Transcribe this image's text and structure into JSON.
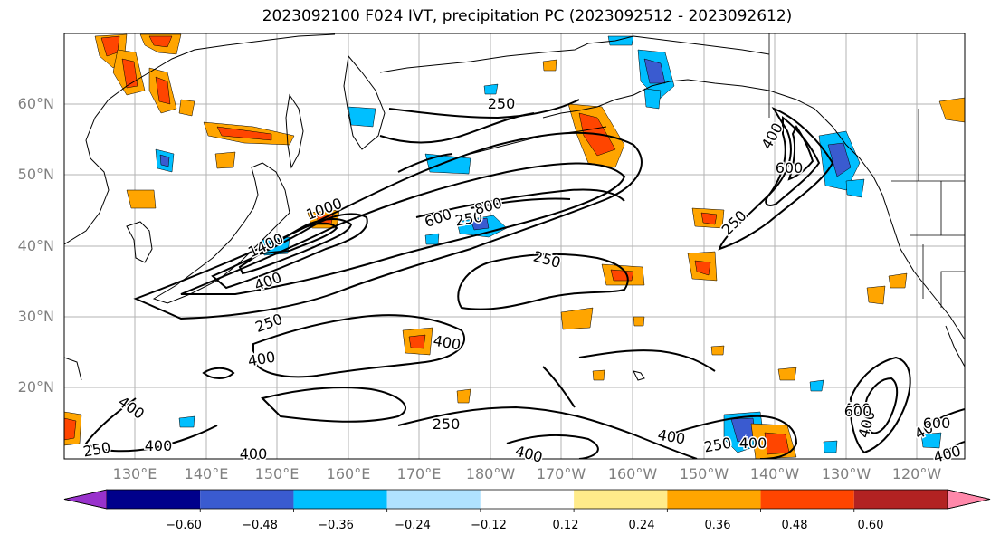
{
  "title": "2023092100 F024 IVT, precipitation PC (2023092512 - 2023092612)",
  "lat_labels": [
    "20°N",
    "30°N",
    "40°N",
    "50°N",
    "60°N"
  ],
  "lon_labels": [
    "130°E",
    "140°E",
    "150°E",
    "160°E",
    "170°E",
    "180°W",
    "170°W",
    "160°W",
    "150°W",
    "140°W",
    "130°W",
    "120°W"
  ],
  "colorbar": {
    "colors": [
      "#9932cc",
      "#00008b",
      "#3a5bd0",
      "#00bfff",
      "#b0e2ff",
      "#ffffff",
      "#ffeb8a",
      "#ffa500",
      "#ff4500",
      "#b22222",
      "#ff88aa"
    ],
    "tick_labels": [
      "−0.60",
      "−0.48",
      "−0.36",
      "−0.24",
      "−0.12",
      "0.12",
      "0.24",
      "0.36",
      "0.48",
      "0.60"
    ]
  },
  "contour_labels": [
    "250",
    "250",
    "250",
    "250",
    "250",
    "250",
    "250",
    "250",
    "400",
    "400",
    "400",
    "400",
    "400",
    "400",
    "400",
    "400",
    "400",
    "400",
    "400",
    "400",
    "400",
    "400",
    "600",
    "600",
    "600",
    "600",
    "800",
    "1000",
    "1400"
  ]
}
